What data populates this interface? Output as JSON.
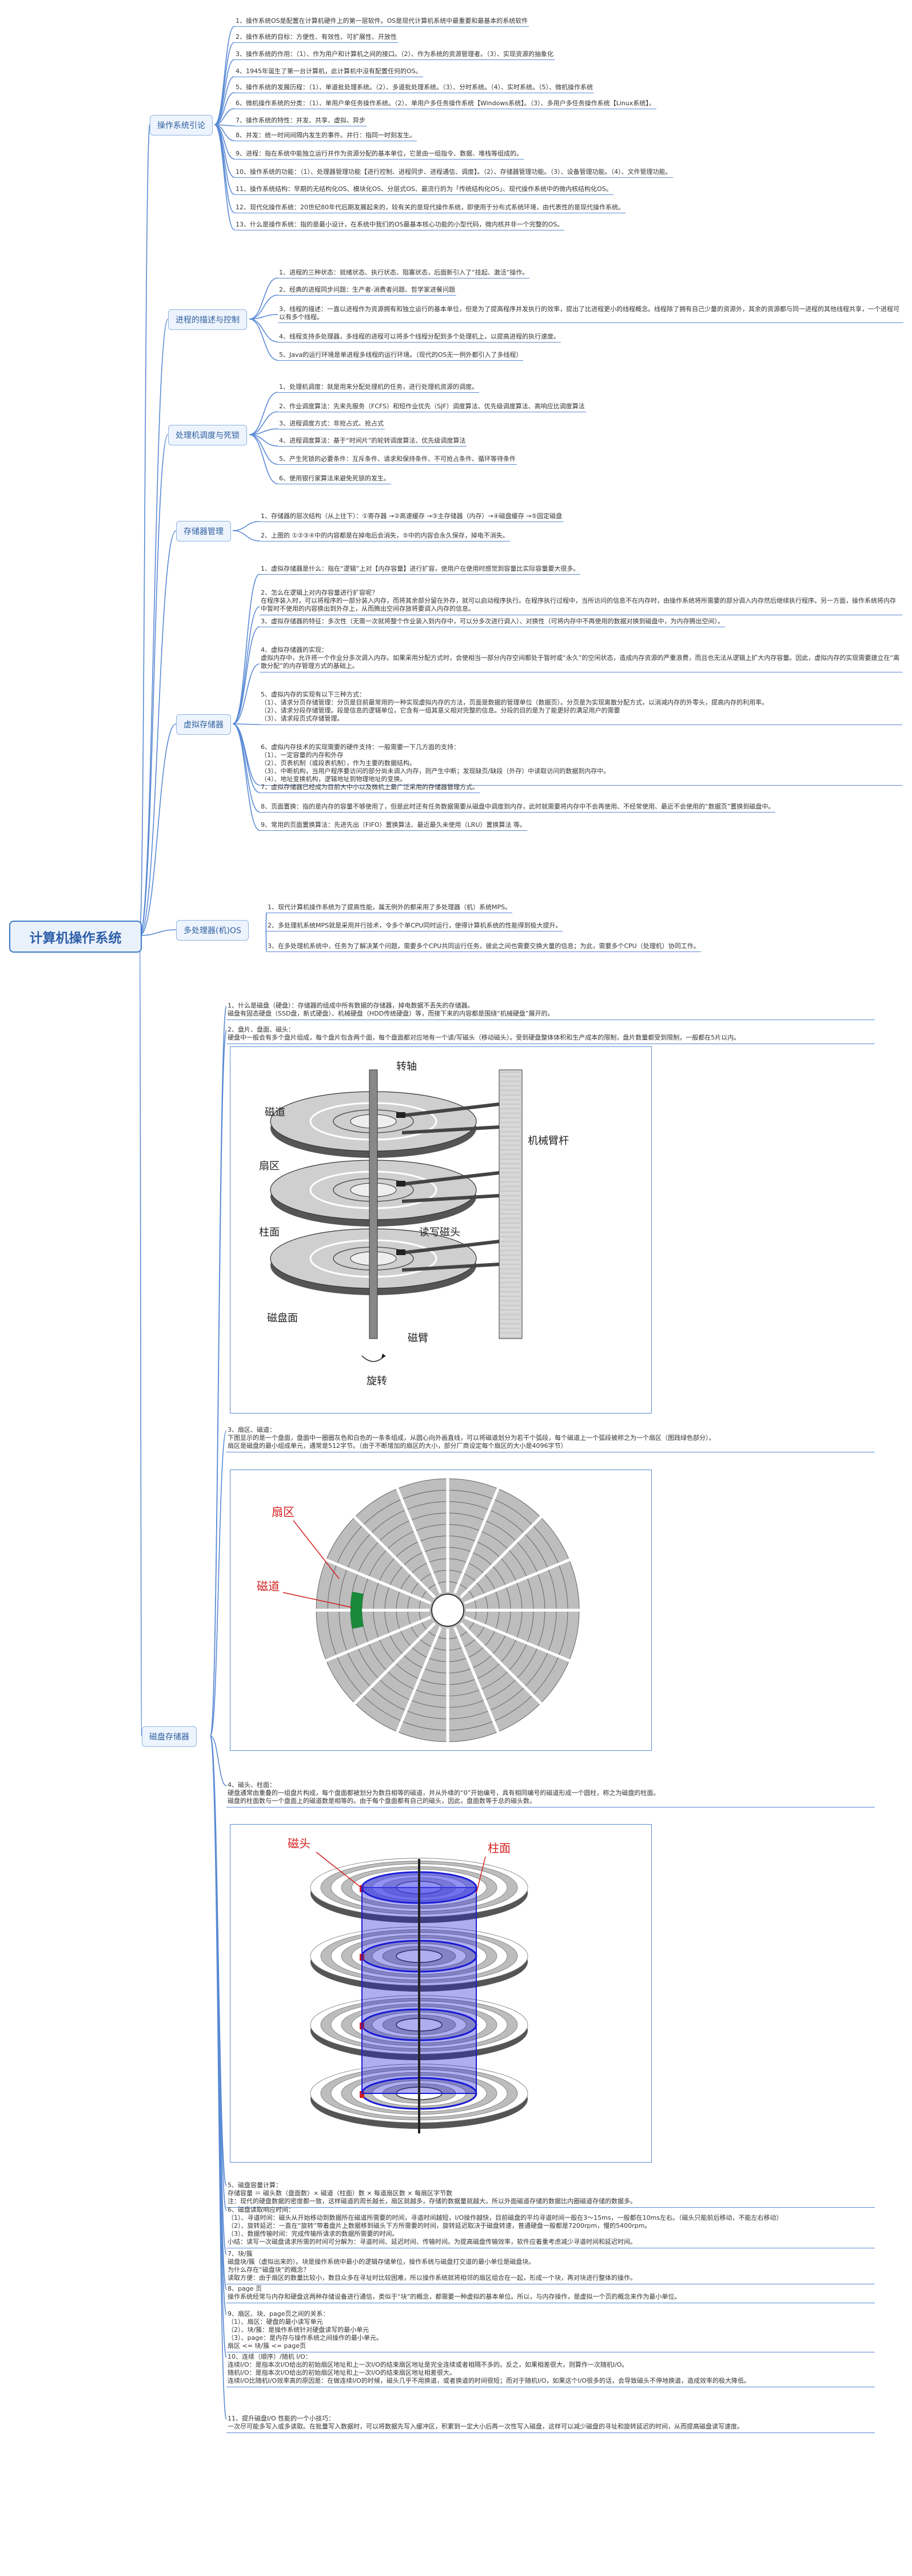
{
  "root": {
    "title": "计算机操作系统"
  },
  "branches": [
    {
      "title": "操作系统引论",
      "items": [
        "1、操作系统OS是配置在计算机硬件上的第一层软件。OS是现代计算机系统中最重要和最基本的系统软件",
        "2、操作系统的目标：方便性、有效性、可扩展性、开放性",
        "3、操作系统的作用：（1）、作为用户和计算机之间的接口。（2）、作为系统的资源管理者。（3）、实现资源的抽象化",
        "4、1945年诞生了第一台计算机，此计算机中没有配置任何的OS。",
        "5、操作系统的发展历程：（1）、单道批处理系统。（2）、多道批处理系统。（3）、分时系统。（4）、实时系统。（5）、微机操作系统",
        "6、微机操作系统的分类：（1）、单用户单任务操作系统。（2）、单用户多任务操作系统【Windows系统】。（3）、多用户多任务操作系统【Linux系统】。",
        "7、操作系统的特性：并发、共享、虚拟、异步",
        "8、并发：统一时间间隔内发生的事件。并行：指同一时刻发生。",
        "9、进程：指在系统中能独立运行并作为资源分配的基本单位，它是由一组指令、数据、堆栈等组成的。",
        "10、操作系统的功能：（1）、处理器管理功能【进行控制、进程同步、进程通信、调度】。（2）、存储器管理功能。（3）、设备管理功能。（4）、文件管理功能。",
        "11、操作系统结构：早期的无结构化OS、模块化OS、分层式OS、最流行的为「传统结构化OS」、现代操作系统中的微内核结构化OS。",
        "12、现代化操作系统：20世纪80年代后期发展起来的，较有关的是现代操作系统，即使用于分布式系统环境，由代表性的是现代操作系统。",
        "13、什么是操作系统：指的是最小设计，在系统中我们的OS最基本核心功能的小型代码，微内核并非一个完整的OS。"
      ]
    },
    {
      "title": "进程的描述与控制",
      "items": [
        "1、进程的三种状态：就绪状态、执行状态、阻塞状态，后面新引入了“挂起、激活”操作。",
        "2、经典的进程同步问题：生产者-消费者问题、哲学家进餐问题",
        "3、线程的描述：一直以进程作为资源拥有和独立运行的基本单位，但是为了提高程序并发执行的效率，提出了比进程更小的线程概念。线程除了拥有自己少量的资源外，其余的资源都与同一进程的其他线程共享，一个进程可以有多个线程。",
        "4、线程支持多处理器，多线程的进程可以将多个线程分配到多个处理机上，以提高进程的执行速度。",
        "5、Java的运行环境是单进程多线程的运行环境。（现代的OS无一例外都引入了多线程）"
      ]
    },
    {
      "title": "处理机调度与死锁",
      "items": [
        "1、处理机调度：就是用来分配处理机的任务，进行处理机资源的调度。",
        "2、作业调度算法：先来先服务（FCFS）和短作业优先（SJF）调度算法、优先级调度算法、高响应比调度算法",
        "3、进程调度方式：非抢占式、抢占式",
        "4、进程调度算法：基于“时间片”的轮转调度算法、优先级调度算法",
        "5、产生死锁的必要条件：互斥条件、请求和保持条件、不可抢占条件、循环等待条件",
        "6、使用银行家算法来避免死锁的发生。"
      ]
    },
    {
      "title": "存储器管理",
      "items": [
        "1、存储器的层次结构（从上往下）：①寄存器 →②高速缓存 →③主存储器（内存）→④磁盘缓存 →⑤固定磁盘",
        "2、上图的 ①②③④中的内容都是在掉电后会消失，⑤中的内容会永久保存，掉电不消失。"
      ]
    },
    {
      "title": "虚拟存储器",
      "items": [
        "1、虚拟存储器是什么：指在“逻辑”上对【内存容量】进行扩容，使用户在使用时感觉到容量比实际容量要大很多。",
        "2、怎么在逻辑上对内存容量进行扩容呢？|在程序装入时，可以将程序的一部分装入内存，而将其余部分留在外存，就可以启动程序执行。在程序执行过程中，当所访问的信息不在内存时，由操作系统将所需要的部分调入内存然后继续执行程序。另一方面，操作系统将内存中暂时不使用的内容换出到外存上，从而腾出空间存放将要调入内存的信息。",
        "3、虚拟存储器的特征：多次性（无需一次就将整个作业装入到内存中，可以分多次进行调入）、对换性（可将内存中不再使用的数据对换到磁盘中，为内存腾出空间）。",
        "4、虚拟存储器的实现：|虚拟内存中，允许将一个作业分多次调入内存。如果采用分配方式时，会使相当一部分内存空间都处于暂时或“永久”的空闲状态，造成内存资源的严重浪费，而且也无法从逻辑上扩大内存容量。因此，虚拟内存的实现需要建立在“离散分配”的内存管理方式的基础上。",
        "5、虚拟内存的实现有以下三种方式：|（1）、请求分页存储管理：分页是目前最常用的一种实现虚拟内存的方法，页面是数据的管理单位（数据页）。分页是为实现离散分配方式，以消减内存的外零头，提高内存的利用率。|（2）、请求分段存储管理。段是信息的逻辑单位，它含有一组其意义相对完整的信息。分段的目的是为了能更好的满足用户的需要|（3）、请求段页式存储管理。",
        "6、虚拟内存技术的实现需要的硬件支持：一般需要一下几方面的支持：|（1）、一定容量的内存和外存|（2）、页表机制（或段表机制），作为主要的数据结构。|（3）、中断机构，当用户程序要访问的部分尚未调入内存，则产生中断；发现缺页/缺段（外存）中读取访问的数据到内存中。|（4）、地址变换机构，逻辑地址到物理地址的变换。",
        "7、虚拟存储器已经成为目前大中小以及微机上最广泛采用的存储器管理方式。",
        "8、页面置换：指的是内存的容量不够使用了，但是此时还有任务数据需要从磁盘中调度到内存，此时就需要将内存中不会再使用、不经常使用、最近不会使用的“数据页”置换到磁盘中。",
        "9、常用的页面置换算法：先进先出（FIFO）置换算法、最近最久未使用（LRU）置换算法 等。"
      ]
    },
    {
      "title": "多处理器(机)OS",
      "items": [
        "1、现代计算机操作系统为了提高性能，属无例外的都采用了多处理器（机）系统MPS。",
        "2、多处理机系统MPS就是采用并行技术，令多个单CPU同时运行，使得计算机系统的性能得到极大提升。",
        "3、在多处理机系统中，任务为了解决某个问题，需要多个CPU共同运行任务，彼此之间也需要交换大量的信息；为此，需要多个CPU（处理机）协同工作。"
      ]
    },
    {
      "title": "磁盘存储器",
      "blocks": [
        "1、什么是磁盘（硬盘）：存储器的组成中所有数据的存储器，掉电数据不丢失的存储器。|磁盘有固态硬盘（SSD盘，新式硬盘）、机械硬盘（HDD传统硬盘）等，而接下来的内容都是围绕“机械硬盘”展开的。",
        "2、盘片、盘面、磁头：|硬盘中一般会有多个盘片组成，每个盘片包含两个面，每个盘面都对应地有一个读/写磁头（移动磁头）。受到硬盘整体体积和生产成本的限制，盘片数量都受到限制，一般都在5片以内。",
        "3、扇区、磁道：|下图显示的是一个盘面，盘面中一圈圈灰色和白色的一条条组成，从圆心向外画直线，可以将磁道划分为若干个弧段，每个磁道上一个弧段被称之为一个扇区（图践绿色部分）。|扇区是磁盘的最小组成单元，通常是512字节。（由于不断增加的扇区的大小，部分厂商设定每个扇区的大小是4096字节）",
        "4、磁头、柱面：|硬盘通常由重叠的一组盘片构成，每个盘面都被划分为数目相等的磁道，并从外缘的“0”开始编号，具有相同编号的磁道形成一个圆柱，称之为磁盘的柱面。|磁盘的柱面数与一个盘面上的磁道数是相等的。由于每个盘面都有自己的磁头，因此，盘面数等于总的磁头数。",
        "5、磁盘容量计算：|存储容量 ＝ 磁头数（盘面数）× 磁道（柱面）数 × 每道扇区数 × 每扇区字节数|注：现代的硬盘数据的密度都一致，这样磁道的周长越长，扇区就越多，存储的数据量就越大。所以外面磁道存储的数据比内圈磁道存储的数据多。",
        "6、磁盘读取响应时间：|（1）、寻道时间：磁头从开始移动到数据所在磁道所需要的时间，寻道时间越短，I/O操作越快，目前磁盘的平均寻道时间一般在3～15ms，一般都在10ms左右。（磁头只能前后移动，不能左右移动）|（2）、旋转延迟：一直在“旋转”带着盘片上数据移到磁头下方所需要的时间，旋转延迟取决于磁盘转速，普通硬盘一般都是7200rpm，慢的5400rpm。|（3）、数据传输时间：完成传输所请求的数据所需要的时间。|小结：读写一次磁盘请求所需的时间可分解为：寻道时间、延迟时间、传输时间。为提高磁盘传输效率，软件应着重考虑减少寻道时间和延迟时间。",
        "7、块/簇|磁盘块/簇（虚拟出来的）。块是操作系统中最小的逻辑存储单位，操作系统与磁盘打交道的最小单位是磁盘块。|为什么存在“磁盘块”的概念？|读取方便：由于扇区的数量比较小，数目众多在寻址时比较困难，所以操作系统就将相邻的扇区组合在一起，形成一个块，再对块进行整体的操作。",
        "8、page 页|操作系统经常与内存和硬盘这两种存储设备进行通信，类似于“块”的概念，都需要一种虚拟的基本单位。所以，与内存操作，是虚拟一个页的概念来作为最小单位。",
        "9、扇区、块、page页之间的关系：|（1）、扇区：硬盘的最小读写单元|（2）、块/簇：是操作系统针对硬盘读写的最小单元|（3）、page：是内存与操作系统之间操作的最小单元。|扇区 <= 块/簇 <= page页",
        "10、连续（顺序）/随机 I/O：|连续I/O：是指本次I/O给出的初始扇区地址和上一次I/O的结束扇区地址是完全连续或者相隔不多的。反之，如果相差很大，则算作一次随机I/O。|随机I/O：是指本次I/O给出的初始扇区地址和上一次I/O的结束扇区地址相差很大。|连续I/O比随机I/O效率高的原因是：在做连续I/O的时候，磁头几乎不用换道，或者换道的时间很短；而对于随机I/O，如果这个I/O很多的话，会导致磁头不停地换道，造成效率的极大降低。",
        "11、提升磁盘I/O 性能的一个小技巧：|一次尽可能多写入或多读取。在批量写入数据时，可以将数据先写入缓冲区，积累到一定大小后再一次性写入磁盘，这样可以减少磁盘的寻址和旋转延迟的时间，从而提高磁盘读写速度。"
      ],
      "figures": {
        "fig1": {
          "labels": [
            "转轴",
            "磁道",
            "扇区",
            "柱面",
            "读写磁头",
            "磁盘面",
            "磁臂",
            "旋转",
            "机械臂杆"
          ]
        },
        "fig2": {
          "labels": [
            "扇区",
            "磁道"
          ]
        },
        "fig3": {
          "labels": [
            "磁头",
            "柱面"
          ]
        }
      }
    }
  ],
  "colors": {
    "accent": "#3c78c8",
    "line": "#5a8ad4",
    "red": "#d42020",
    "blue": "#1a1ad4",
    "green": "#1a8a3a"
  }
}
